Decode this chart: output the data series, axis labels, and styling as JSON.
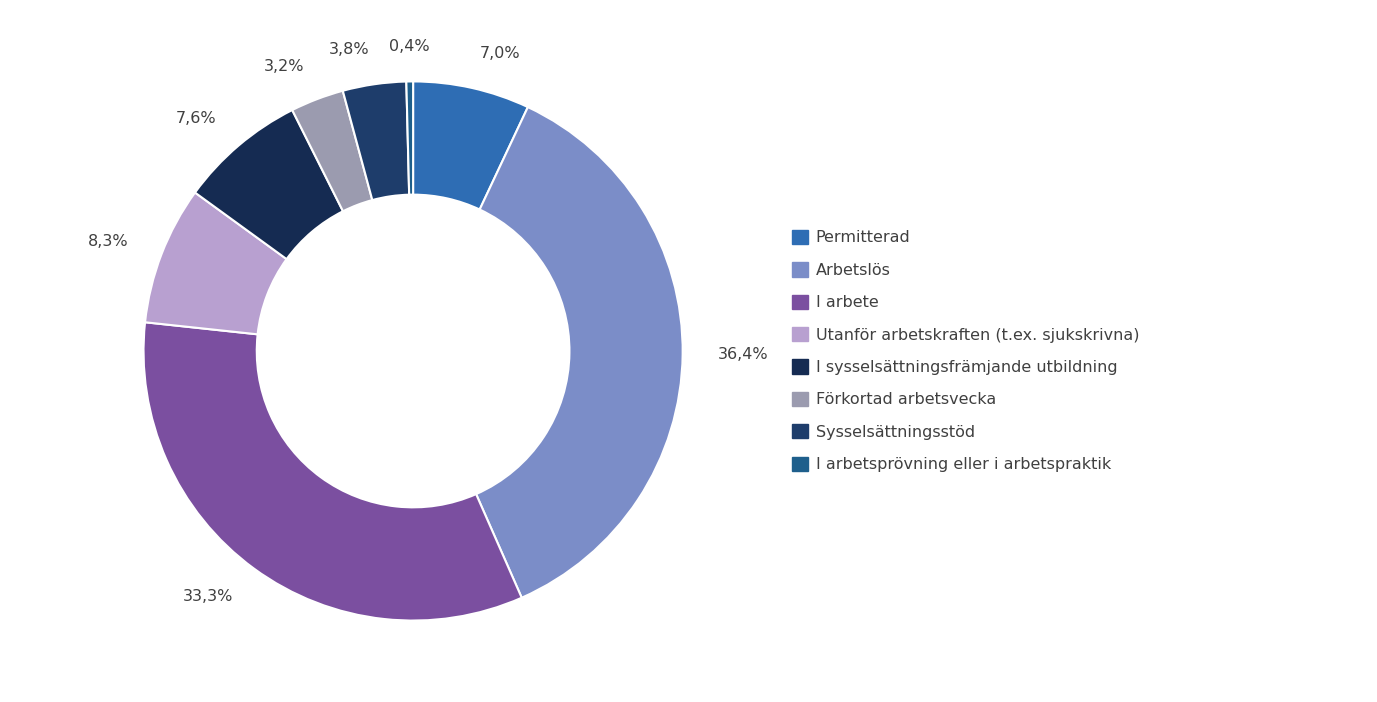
{
  "labels": [
    "Permitterad",
    "Arbetslös",
    "I arbete",
    "Utanför arbetskraften (t.ex. sjukskrivna)",
    "I sysselsättningsfrämjande utbildning",
    "Förkortad arbetsvecka",
    "Sysselsättningsstöd",
    "I arbetsprövning eller i arbetspraktik"
  ],
  "values": [
    7.0,
    36.4,
    33.3,
    8.3,
    7.6,
    3.2,
    3.8,
    0.4
  ],
  "colors": [
    "#2E6DB4",
    "#7B8DC8",
    "#7B4FA0",
    "#B8A0D0",
    "#152B52",
    "#9B9BAF",
    "#1E3D6B",
    "#1E5F8C"
  ],
  "pct_labels": [
    "7,0%",
    "36,4%",
    "33,3%",
    "8,3%",
    "7,6%",
    "3,2%",
    "3,8%",
    "0,4%"
  ],
  "background_color": "#ffffff",
  "text_color": "#404040",
  "font_size": 11.5,
  "legend_font_size": 11.5,
  "donut_width": 0.42
}
